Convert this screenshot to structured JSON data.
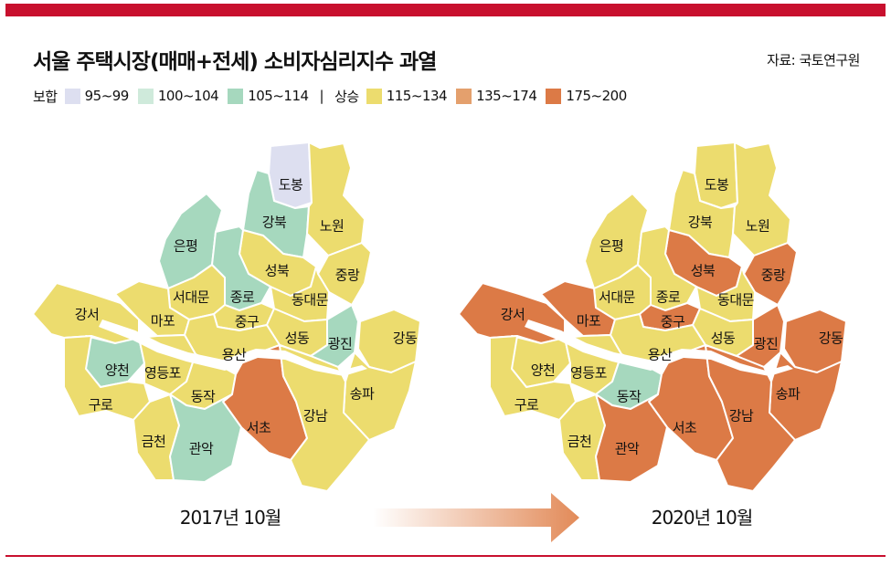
{
  "title": "서울 주택시장(매매+전세) 소비자심리지수 과열",
  "source": "자료: 국토연구원",
  "legend": {
    "group1": "보합",
    "group2": "상승",
    "separator": "|",
    "items": [
      {
        "label": "95~99",
        "color": "#dddff0"
      },
      {
        "label": "100~104",
        "color": "#cfeadb"
      },
      {
        "label": "105~114",
        "color": "#a6d8be"
      },
      {
        "label": "115~134",
        "color": "#ecdc6e"
      },
      {
        "label": "135~174",
        "color": "#e4a06d"
      },
      {
        "label": "175~200",
        "color": "#dc7a46"
      }
    ]
  },
  "maps": [
    {
      "caption": "2017년 10월",
      "districts": [
        {
          "name": "도봉",
          "class": "95~99"
        },
        {
          "name": "강북",
          "class": "105~114"
        },
        {
          "name": "노원",
          "class": "115~134"
        },
        {
          "name": "은평",
          "class": "105~114"
        },
        {
          "name": "성북",
          "class": "115~134"
        },
        {
          "name": "중랑",
          "class": "115~134"
        },
        {
          "name": "서대문",
          "class": "115~134"
        },
        {
          "name": "종로",
          "class": "105~114"
        },
        {
          "name": "동대문",
          "class": "115~134"
        },
        {
          "name": "강서",
          "class": "115~134"
        },
        {
          "name": "마포",
          "class": "115~134"
        },
        {
          "name": "중구",
          "class": "115~134"
        },
        {
          "name": "성동",
          "class": "115~134"
        },
        {
          "name": "광진",
          "class": "105~114"
        },
        {
          "name": "용산",
          "class": "115~134"
        },
        {
          "name": "강동",
          "class": "115~134"
        },
        {
          "name": "양천",
          "class": "105~114"
        },
        {
          "name": "영등포",
          "class": "115~134"
        },
        {
          "name": "동작",
          "class": "115~134"
        },
        {
          "name": "송파",
          "class": "115~134"
        },
        {
          "name": "구로",
          "class": "115~134"
        },
        {
          "name": "서초",
          "class": "175~200"
        },
        {
          "name": "강남",
          "class": "115~134"
        },
        {
          "name": "금천",
          "class": "115~134"
        },
        {
          "name": "관악",
          "class": "105~114"
        }
      ]
    },
    {
      "caption": "2020년 10월",
      "districts": [
        {
          "name": "도봉",
          "class": "115~134"
        },
        {
          "name": "강북",
          "class": "115~134"
        },
        {
          "name": "노원",
          "class": "115~134"
        },
        {
          "name": "은평",
          "class": "115~134"
        },
        {
          "name": "성북",
          "class": "175~200"
        },
        {
          "name": "중랑",
          "class": "175~200"
        },
        {
          "name": "서대문",
          "class": "115~134"
        },
        {
          "name": "종로",
          "class": "115~134"
        },
        {
          "name": "동대문",
          "class": "115~134"
        },
        {
          "name": "강서",
          "class": "175~200"
        },
        {
          "name": "마포",
          "class": "175~200"
        },
        {
          "name": "중구",
          "class": "175~200"
        },
        {
          "name": "성동",
          "class": "115~134"
        },
        {
          "name": "광진",
          "class": "175~200"
        },
        {
          "name": "용산",
          "class": "115~134"
        },
        {
          "name": "강동",
          "class": "175~200"
        },
        {
          "name": "양천",
          "class": "115~134"
        },
        {
          "name": "영등포",
          "class": "115~134"
        },
        {
          "name": "동작",
          "class": "105~114"
        },
        {
          "name": "송파",
          "class": "175~200"
        },
        {
          "name": "구로",
          "class": "115~134"
        },
        {
          "name": "서초",
          "class": "175~200"
        },
        {
          "name": "강남",
          "class": "175~200"
        },
        {
          "name": "금천",
          "class": "115~134"
        },
        {
          "name": "관악",
          "class": "175~200"
        }
      ]
    }
  ],
  "colors": {
    "accent_bar": "#c8102e",
    "river": "#ffffff",
    "arrow": "#e28a58"
  },
  "arrow_icon": "right-arrow-icon"
}
